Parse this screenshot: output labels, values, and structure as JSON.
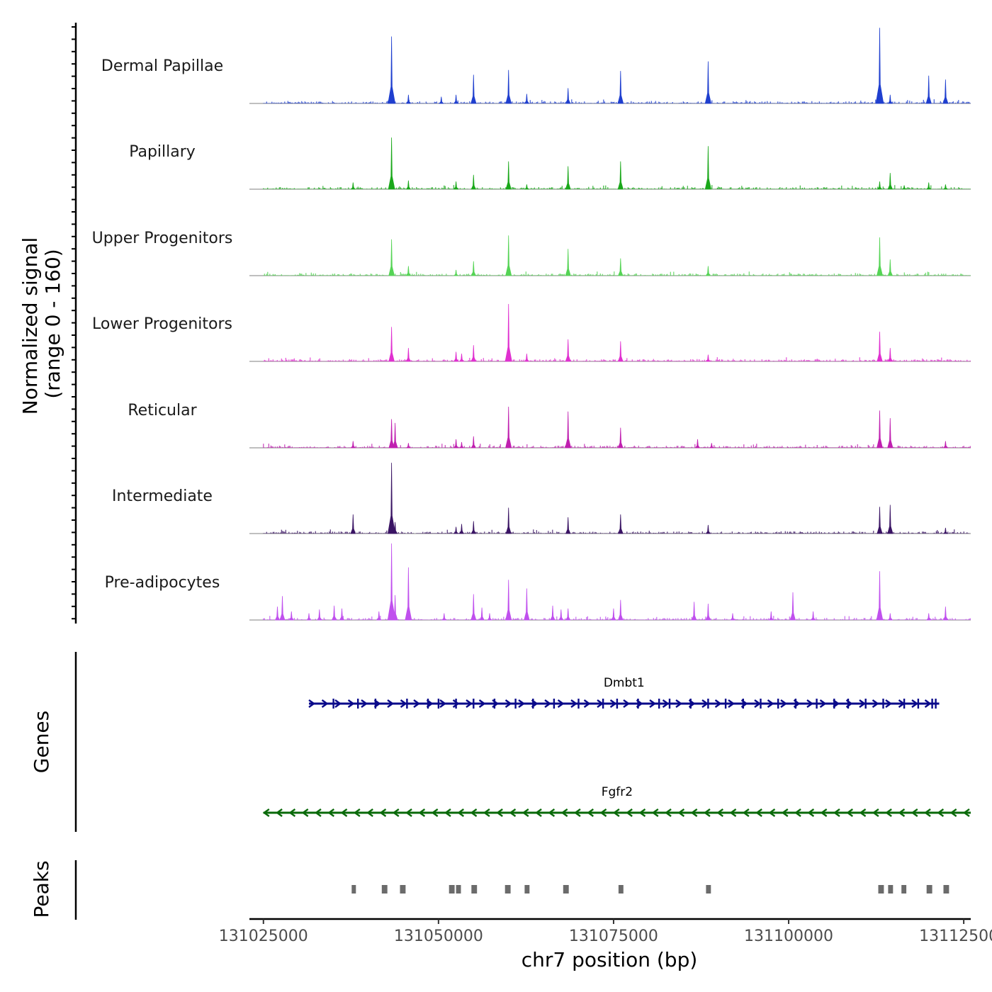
{
  "chart_data": {
    "type": "area",
    "title": "",
    "xlabel": "chr7 position (bp)",
    "ylabel": "Normalized signal",
    "ylabel_range": "(range 0 - 160)",
    "xlim": [
      131023000,
      131126000
    ],
    "ylim": [
      0,
      160
    ],
    "x_ticks": [
      131025000,
      131050000,
      131075000,
      131100000,
      131125000
    ],
    "x_tick_labels": [
      "131025000",
      "131050000",
      "131075000",
      "131100000",
      "131125000"
    ],
    "coverage_region": [
      131025000,
      131126000
    ],
    "tracks": [
      {
        "name": "Dermal Papillae",
        "color": "#1f3fcf",
        "peaks": [
          [
            131043300,
            140
          ],
          [
            131045700,
            18
          ],
          [
            131050400,
            14
          ],
          [
            131052500,
            18
          ],
          [
            131055000,
            60
          ],
          [
            131060000,
            70
          ],
          [
            131062600,
            20
          ],
          [
            131068500,
            32
          ],
          [
            131076000,
            68
          ],
          [
            131088500,
            88
          ],
          [
            131113000,
            158
          ],
          [
            131114500,
            18
          ],
          [
            131120000,
            58
          ],
          [
            131122400,
            50
          ]
        ]
      },
      {
        "name": "Papillary",
        "color": "#1aa81a",
        "peaks": [
          [
            131037800,
            14
          ],
          [
            131043300,
            108
          ],
          [
            131045700,
            18
          ],
          [
            131052500,
            16
          ],
          [
            131055000,
            30
          ],
          [
            131060000,
            58
          ],
          [
            131062600,
            10
          ],
          [
            131068500,
            48
          ],
          [
            131076000,
            58
          ],
          [
            131088500,
            90
          ],
          [
            131113000,
            16
          ],
          [
            131114500,
            34
          ],
          [
            131116500,
            8
          ],
          [
            131120000,
            14
          ],
          [
            131122400,
            10
          ]
        ]
      },
      {
        "name": "Upper Progenitors",
        "color": "#55d455",
        "peaks": [
          [
            131043300,
            76
          ],
          [
            131045700,
            20
          ],
          [
            131052500,
            12
          ],
          [
            131055000,
            30
          ],
          [
            131060000,
            84
          ],
          [
            131068500,
            56
          ],
          [
            131076000,
            36
          ],
          [
            131088500,
            20
          ],
          [
            131113000,
            80
          ],
          [
            131114500,
            34
          ]
        ]
      },
      {
        "name": "Lower Progenitors",
        "color": "#e030d0",
        "peaks": [
          [
            131043300,
            72
          ],
          [
            131045700,
            28
          ],
          [
            131052500,
            20
          ],
          [
            131053300,
            16
          ],
          [
            131055000,
            34
          ],
          [
            131060000,
            120
          ],
          [
            131062600,
            16
          ],
          [
            131068500,
            46
          ],
          [
            131076000,
            42
          ],
          [
            131088500,
            14
          ],
          [
            131113000,
            62
          ],
          [
            131114500,
            28
          ]
        ]
      },
      {
        "name": "Reticular",
        "color": "#c020b0",
        "peaks": [
          [
            131037800,
            14
          ],
          [
            131043300,
            60
          ],
          [
            131043800,
            52
          ],
          [
            131045700,
            10
          ],
          [
            131052500,
            18
          ],
          [
            131053300,
            12
          ],
          [
            131055000,
            24
          ],
          [
            131060000,
            86
          ],
          [
            131068500,
            76
          ],
          [
            131076000,
            42
          ],
          [
            131087000,
            18
          ],
          [
            131089000,
            10
          ],
          [
            131113000,
            78
          ],
          [
            131114500,
            62
          ],
          [
            131122400,
            14
          ]
        ]
      },
      {
        "name": "Intermediate",
        "color": "#3a1464",
        "peaks": [
          [
            131037800,
            40
          ],
          [
            131043300,
            148
          ],
          [
            131043800,
            24
          ],
          [
            131052500,
            14
          ],
          [
            131053300,
            20
          ],
          [
            131055000,
            26
          ],
          [
            131060000,
            54
          ],
          [
            131068500,
            34
          ],
          [
            131076000,
            40
          ],
          [
            131088500,
            18
          ],
          [
            131113000,
            56
          ],
          [
            131114500,
            60
          ],
          [
            131122400,
            12
          ]
        ]
      },
      {
        "name": "Pre-adipocytes",
        "color": "#c050ee",
        "peaks": [
          [
            131027000,
            28
          ],
          [
            131027700,
            50
          ],
          [
            131029000,
            18
          ],
          [
            131031500,
            14
          ],
          [
            131033000,
            22
          ],
          [
            131035100,
            30
          ],
          [
            131036200,
            24
          ],
          [
            131041500,
            18
          ],
          [
            131043300,
            160
          ],
          [
            131043800,
            52
          ],
          [
            131045700,
            110
          ],
          [
            131050800,
            14
          ],
          [
            131055000,
            54
          ],
          [
            131056200,
            26
          ],
          [
            131057300,
            14
          ],
          [
            131060000,
            84
          ],
          [
            131062600,
            66
          ],
          [
            131066300,
            30
          ],
          [
            131067500,
            22
          ],
          [
            131068500,
            24
          ],
          [
            131075000,
            24
          ],
          [
            131076000,
            42
          ],
          [
            131086500,
            38
          ],
          [
            131088500,
            34
          ],
          [
            131092000,
            14
          ],
          [
            131097500,
            18
          ],
          [
            131100600,
            58
          ],
          [
            131103500,
            18
          ],
          [
            131113000,
            102
          ],
          [
            131114500,
            14
          ],
          [
            131120000,
            14
          ],
          [
            131122400,
            28
          ]
        ]
      }
    ],
    "genes": [
      {
        "name": "Dmbt1",
        "start": 131031500,
        "end": 131121500,
        "strand": "+",
        "color": "#0a0a8a",
        "exons": [
          131035000,
          131038500,
          131041000,
          131045500,
          131048500,
          131050000,
          131052500,
          131055000,
          131058000,
          131061000,
          131063500,
          131066500,
          131070000,
          131073500,
          131075500,
          131078500,
          131081500,
          131083000,
          131086000,
          131088500,
          131091000,
          131093500,
          131096000,
          131098500,
          131101000,
          131104000,
          131106500,
          131108500,
          131111000,
          131113500,
          131116500,
          131118500,
          131120500,
          131121000
        ]
      },
      {
        "name": "Fgfr2",
        "start": 131025000,
        "end": 131126000,
        "strand": "-",
        "color": "#0a6a0a",
        "exons": []
      }
    ],
    "peaks": [
      [
        131037600,
        131038200
      ],
      [
        131041900,
        131042700
      ],
      [
        131044500,
        131045300
      ],
      [
        131051500,
        131052300
      ],
      [
        131052500,
        131053200
      ],
      [
        131054700,
        131055500
      ],
      [
        131059500,
        131060300
      ],
      [
        131062300,
        131063000
      ],
      [
        131067800,
        131068600
      ],
      [
        131075700,
        131076400
      ],
      [
        131088200,
        131088900
      ],
      [
        131112800,
        131113600
      ],
      [
        131114200,
        131114900
      ],
      [
        131116100,
        131116800
      ],
      [
        131119700,
        131120500
      ],
      [
        131122100,
        131122900
      ]
    ],
    "panel_labels": [
      "Genes",
      "Peaks"
    ]
  }
}
